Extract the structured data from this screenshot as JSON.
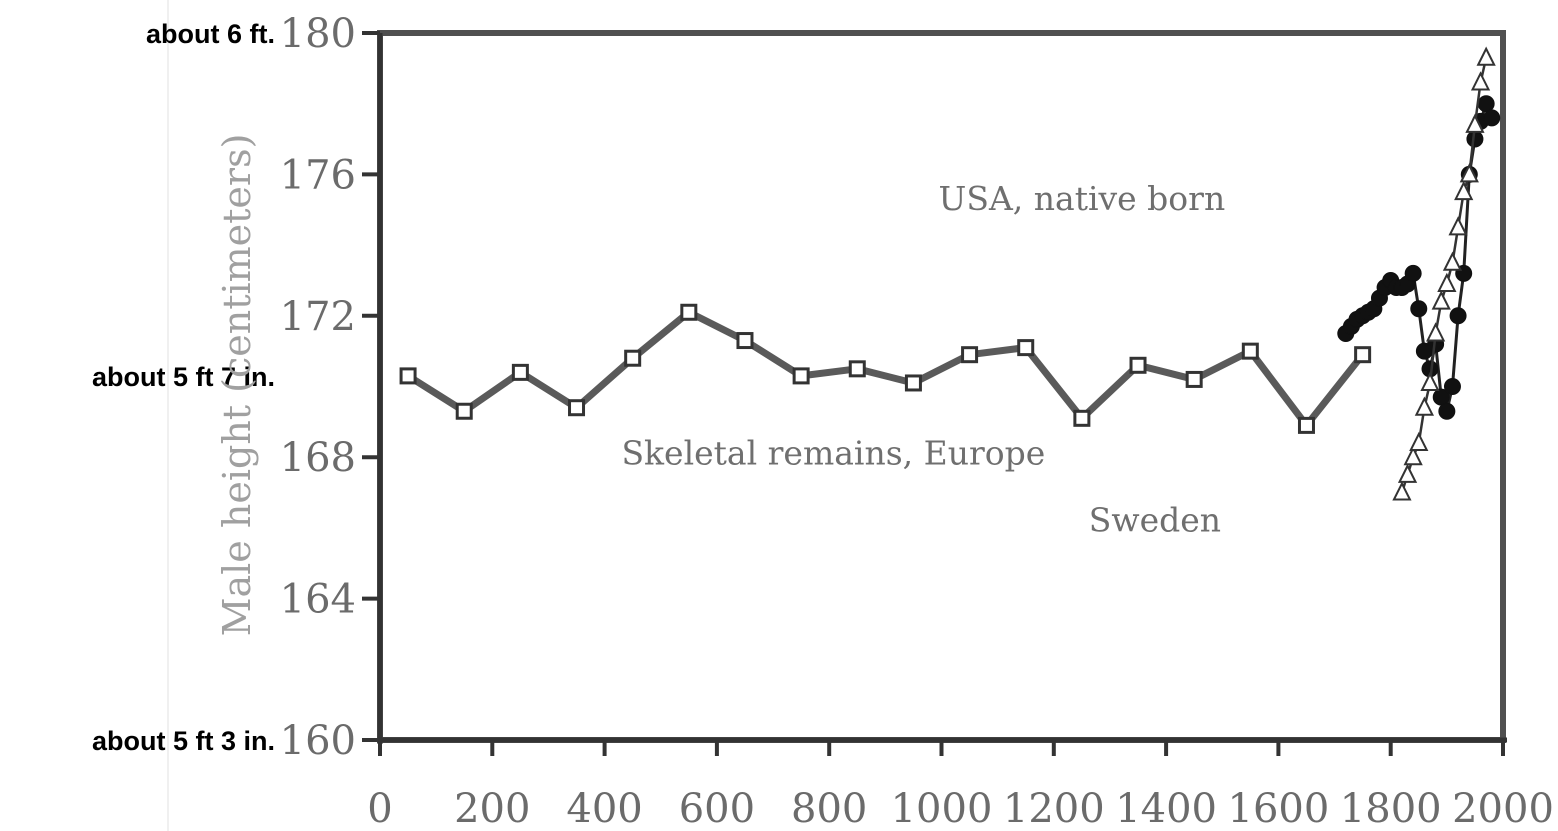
{
  "chart_data": {
    "type": "line",
    "title": "",
    "xlabel": "",
    "ylabel": "Male height (centimeters)",
    "xlim": [
      0,
      2000
    ],
    "ylim": [
      160,
      180
    ],
    "x_ticks": [
      "0",
      "200",
      "400",
      "600",
      "800",
      "1000",
      "1200",
      "1400",
      "1600",
      "1800",
      "2000"
    ],
    "y_ticks": [
      "160",
      "164",
      "168",
      "172",
      "176",
      "180"
    ],
    "side_labels": [
      {
        "text": "about 6 ft.",
        "at_value": 180
      },
      {
        "text": "about 5 ft 7 in.",
        "at_value": 170.3
      },
      {
        "text": "about 5 ft 3 in.",
        "at_value": 160
      }
    ],
    "annotations": [
      {
        "text": "Skeletal remains, Europe",
        "x": 430,
        "y": 167.8
      },
      {
        "text": "USA, native born",
        "x": 1250,
        "y": 175.0
      },
      {
        "text": "Sweden",
        "x": 1380,
        "y": 165.9
      }
    ],
    "series": [
      {
        "name": "Skeletal remains, Europe",
        "marker": "square",
        "color": "#555555",
        "x": [
          50,
          150,
          250,
          350,
          450,
          550,
          650,
          750,
          850,
          950,
          1050,
          1150,
          1250,
          1350,
          1450,
          1550,
          1650,
          1750
        ],
        "y": [
          170.3,
          169.3,
          170.4,
          169.4,
          170.8,
          172.1,
          171.3,
          170.3,
          170.5,
          170.1,
          170.9,
          171.1,
          169.1,
          170.6,
          170.2,
          171.0,
          168.9,
          170.9
        ]
      },
      {
        "name": "USA, native born",
        "marker": "circle",
        "color": "#222222",
        "x": [
          1720,
          1730,
          1740,
          1750,
          1760,
          1770,
          1780,
          1790,
          1800,
          1810,
          1820,
          1830,
          1840,
          1850,
          1860,
          1870,
          1880,
          1890,
          1900,
          1910,
          1920,
          1930,
          1940,
          1950,
          1960,
          1970,
          1980
        ],
        "y": [
          171.5,
          171.7,
          171.9,
          172.0,
          172.1,
          172.2,
          172.5,
          172.8,
          173.0,
          172.8,
          172.8,
          172.9,
          173.2,
          172.2,
          171.0,
          170.5,
          171.2,
          169.7,
          169.3,
          170.0,
          172.0,
          173.2,
          176.0,
          177.0,
          177.5,
          178.0,
          177.6
        ]
      },
      {
        "name": "Sweden",
        "marker": "triangle",
        "color": "#333333",
        "x": [
          1820,
          1830,
          1840,
          1850,
          1860,
          1870,
          1880,
          1890,
          1900,
          1910,
          1920,
          1930,
          1940,
          1950,
          1960,
          1970
        ],
        "y": [
          167.0,
          167.5,
          168.0,
          168.4,
          169.4,
          170.1,
          171.5,
          172.4,
          172.9,
          173.5,
          174.5,
          175.5,
          176.0,
          177.4,
          178.6,
          179.3
        ]
      }
    ]
  }
}
